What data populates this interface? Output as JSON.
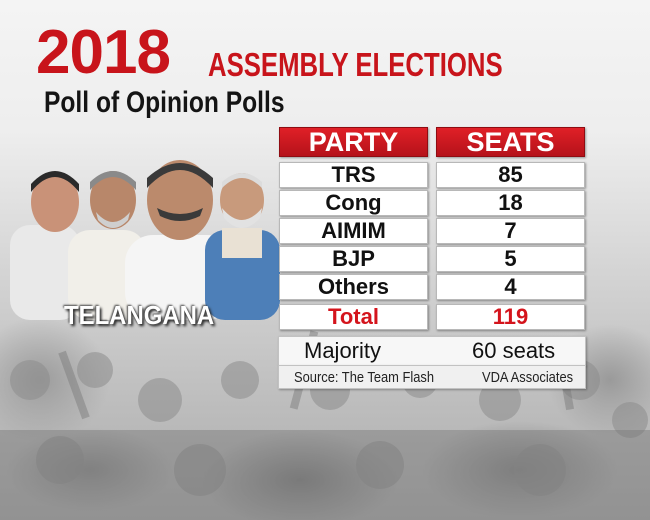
{
  "header": {
    "year": "2018",
    "event": "ASSEMBLY ELECTIONS",
    "subtitle": "Poll of Opinion Polls"
  },
  "state": "TELANGANA",
  "table": {
    "col_party": "PARTY",
    "col_seats": "SEATS",
    "rows": [
      {
        "party": "TRS",
        "seats": "85"
      },
      {
        "party": "Cong",
        "seats": "18"
      },
      {
        "party": "AIMIM",
        "seats": "7"
      },
      {
        "party": "BJP",
        "seats": "5"
      },
      {
        "party": "Others",
        "seats": "4"
      }
    ],
    "total_label": "Total",
    "total_value": "119",
    "majority_label": "Majority",
    "majority_value": "60 seats",
    "source_label": "Source:  The Team Flash",
    "source_other": "VDA Associates"
  },
  "colors": {
    "accent_red": "#c8141b",
    "header_red": "#e02027",
    "cell_bg": "#ffffff"
  },
  "chart_data": {
    "type": "table",
    "title": "2018 ASSEMBLY ELECTIONS",
    "subtitle": "Poll of Opinion Polls",
    "columns": [
      "PARTY",
      "SEATS"
    ],
    "categories": [
      "TRS",
      "Cong",
      "AIMIM",
      "BJP",
      "Others"
    ],
    "values": [
      85,
      18,
      7,
      5,
      4
    ],
    "total": 119,
    "majority": "60 seats",
    "region": "TELANGANA"
  }
}
